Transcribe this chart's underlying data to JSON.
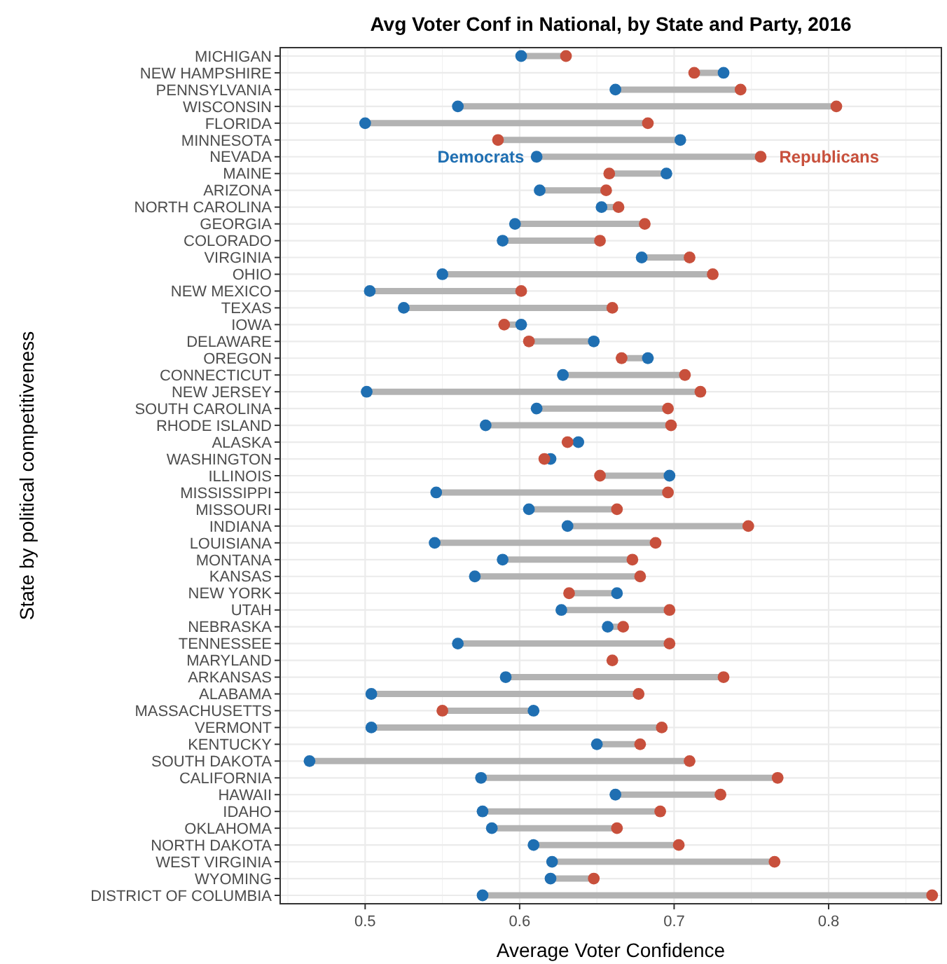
{
  "chart_data": {
    "type": "scatter",
    "orientation": "horizontal",
    "title": "Avg Voter Conf in National, by State and Party, 2016",
    "xlabel": "Average Voter Confidence",
    "ylabel": "State by political competitiveness",
    "categories": [
      "MICHIGAN",
      "NEW HAMPSHIRE",
      "PENNSYLVANIA",
      "WISCONSIN",
      "FLORIDA",
      "MINNESOTA",
      "NEVADA",
      "MAINE",
      "ARIZONA",
      "NORTH CAROLINA",
      "GEORGIA",
      "COLORADO",
      "VIRGINIA",
      "OHIO",
      "NEW MEXICO",
      "TEXAS",
      "IOWA",
      "DELAWARE",
      "OREGON",
      "CONNECTICUT",
      "NEW JERSEY",
      "SOUTH CAROLINA",
      "RHODE ISLAND",
      "ALASKA",
      "WASHINGTON",
      "ILLINOIS",
      "MISSISSIPPI",
      "MISSOURI",
      "INDIANA",
      "LOUISIANA",
      "MONTANA",
      "KANSAS",
      "NEW YORK",
      "UTAH",
      "NEBRASKA",
      "TENNESSEE",
      "MARYLAND",
      "ARKANSAS",
      "ALABAMA",
      "MASSACHUSETTS",
      "VERMONT",
      "KENTUCKY",
      "SOUTH DAKOTA",
      "CALIFORNIA",
      "HAWAII",
      "IDAHO",
      "OKLAHOMA",
      "NORTH DAKOTA",
      "WEST VIRGINIA",
      "WYOMING",
      "DISTRICT OF COLUMBIA"
    ],
    "series": [
      {
        "name": "Democrats",
        "color": "#1f6fb2",
        "values": [
          0.601,
          0.732,
          0.662,
          0.56,
          0.5,
          0.704,
          0.611,
          0.695,
          0.613,
          0.653,
          0.597,
          0.589,
          0.679,
          0.55,
          0.503,
          0.525,
          0.601,
          0.648,
          0.683,
          0.628,
          0.501,
          0.611,
          0.578,
          0.638,
          0.62,
          0.697,
          0.546,
          0.606,
          0.631,
          0.545,
          0.589,
          0.571,
          0.663,
          0.627,
          0.657,
          0.56,
          null,
          0.591,
          0.504,
          0.609,
          0.504,
          0.65,
          0.464,
          0.575,
          0.662,
          0.576,
          0.582,
          0.609,
          0.621,
          0.62,
          0.576
        ]
      },
      {
        "name": "Republicans",
        "color": "#c8503c",
        "values": [
          0.63,
          0.713,
          0.743,
          0.805,
          0.683,
          0.586,
          0.756,
          0.658,
          0.656,
          0.664,
          0.681,
          0.652,
          0.71,
          0.725,
          0.601,
          0.66,
          0.59,
          0.606,
          0.666,
          0.707,
          0.717,
          0.696,
          0.698,
          0.631,
          0.616,
          0.652,
          0.696,
          0.663,
          0.748,
          0.688,
          0.673,
          0.678,
          0.632,
          0.697,
          0.667,
          0.697,
          0.66,
          0.732,
          0.677,
          0.55,
          0.692,
          0.678,
          0.71,
          0.767,
          0.73,
          0.691,
          0.663,
          0.703,
          0.765,
          0.648,
          0.867
        ]
      }
    ],
    "xlim": [
      0.445,
      0.873
    ],
    "xticks": [
      0.5,
      0.6,
      0.7,
      0.8
    ],
    "grid": true,
    "legend": "top",
    "marker": "circle"
  }
}
